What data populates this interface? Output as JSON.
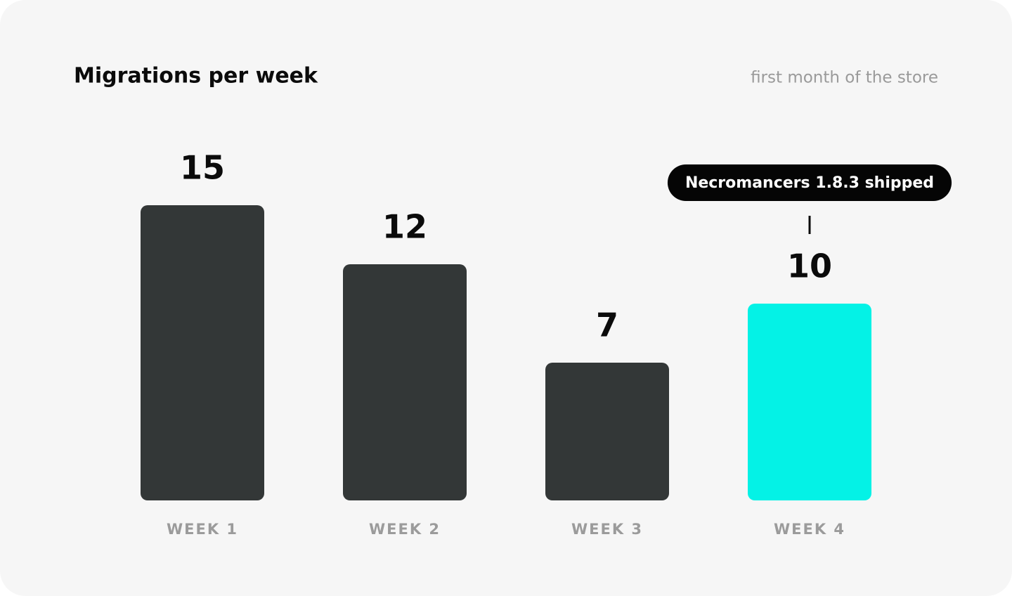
{
  "chart_data": {
    "type": "bar",
    "title": "Migrations per week",
    "subtitle": "first month of the store",
    "categories": [
      "WEEK 1",
      "WEEK 2",
      "WEEK 3",
      "WEEK 4"
    ],
    "values": [
      15,
      12,
      7,
      10
    ],
    "colors": [
      "#333737",
      "#333737",
      "#333737",
      "#04f2e6"
    ],
    "ylim": [
      0,
      15
    ],
    "annotations": [
      {
        "text": "Necromancers 1.8.3 shipped",
        "category": "WEEK 4"
      }
    ]
  }
}
